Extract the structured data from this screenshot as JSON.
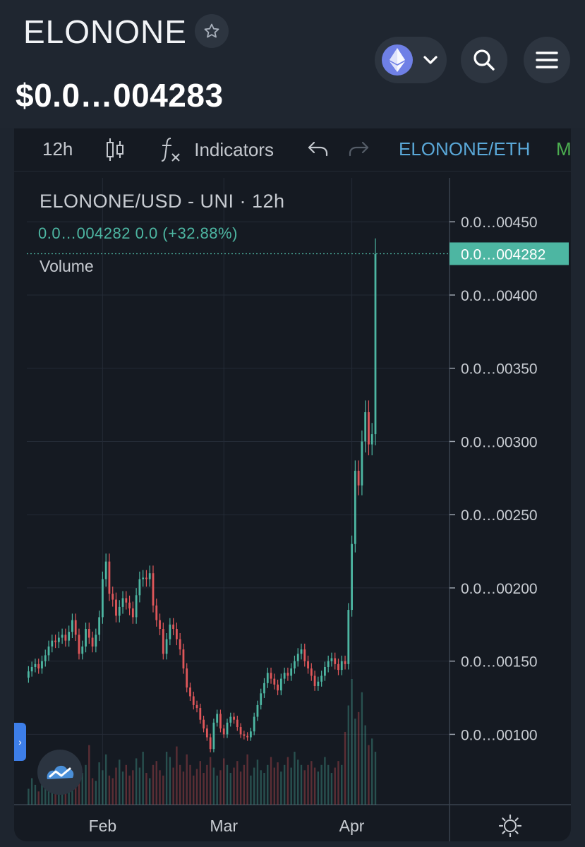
{
  "header": {
    "token_name": "ELONONE",
    "price": "$0.0…004283",
    "favorite_icon": "star-icon",
    "chain_icon": "ethereum-icon",
    "search_icon": "search-icon",
    "menu_icon": "menu-icon"
  },
  "toolbar": {
    "interval": "12h",
    "indicators_label": "Indicators",
    "pair_label": "ELONONE/ETH",
    "extra_label": "M",
    "chart_type_icon": "candlestick-icon",
    "fx_icon": "function-icon",
    "undo_icon": "undo-icon",
    "redo_icon": "redo-icon"
  },
  "legend": {
    "title": "ELONONE/USD - UNI · 12h",
    "value": "0.0…004282 0.0 (+32.88%)",
    "volume": "Volume"
  },
  "colors": {
    "up": "#4db6a2",
    "down": "#e0575a",
    "accent_blue": "#5aa8d8"
  },
  "chart_data": {
    "type": "candlestick",
    "title": "ELONONE/USD - UNI · 12h",
    "y_tick_labels": [
      "0.0…00450",
      "0.0…00400",
      "0.0…00350",
      "0.0…00300",
      "0.0…00250",
      "0.0…00200",
      "0.0…00150",
      "0.0…00100"
    ],
    "y_ticks": [
      0.0045,
      0.004,
      0.0035,
      0.003,
      0.0025,
      0.002,
      0.0015,
      0.001
    ],
    "ylim": [
      0.00052,
      0.0048
    ],
    "x_tick_labels": [
      "Feb",
      "Mar",
      "Apr"
    ],
    "x_ticks": [
      22,
      58,
      96
    ],
    "xlim": [
      -0.5,
      125
    ],
    "current_price_label": "0.0…004282",
    "current_price": 0.004282,
    "grid": true,
    "closes": [
      0.00143,
      0.00146,
      0.00148,
      0.00145,
      0.0015,
      0.00154,
      0.0016,
      0.00164,
      0.00163,
      0.00166,
      0.00168,
      0.00164,
      0.0017,
      0.00178,
      0.00168,
      0.00155,
      0.0016,
      0.00172,
      0.00166,
      0.0016,
      0.00168,
      0.0018,
      0.00206,
      0.00218,
      0.00196,
      0.00192,
      0.00181,
      0.00187,
      0.00193,
      0.0019,
      0.00186,
      0.0018,
      0.00195,
      0.00206,
      0.00207,
      0.00206,
      0.0021,
      0.00188,
      0.00178,
      0.00172,
      0.00155,
      0.00165,
      0.00175,
      0.00172,
      0.00165,
      0.00158,
      0.00145,
      0.00132,
      0.00126,
      0.0012,
      0.00118,
      0.0011,
      0.00104,
      0.00098,
      0.0009,
      0.00108,
      0.00114,
      0.00104,
      0.001,
      0.00108,
      0.00112,
      0.0011,
      0.00105,
      0.001,
      0.00099,
      0.00098,
      0.00102,
      0.00112,
      0.0012,
      0.00128,
      0.00135,
      0.00142,
      0.00138,
      0.00134,
      0.0013,
      0.00138,
      0.00142,
      0.0014,
      0.00145,
      0.0015,
      0.00155,
      0.00158,
      0.0015,
      0.00145,
      0.0014,
      0.00133,
      0.00136,
      0.0014,
      0.00146,
      0.0015,
      0.00152,
      0.00148,
      0.00144,
      0.0015,
      0.00148,
      0.00185,
      0.0023,
      0.0028,
      0.0027,
      0.003,
      0.0032,
      0.00298,
      0.00305,
      0.00428
    ],
    "volumes": [
      0.12,
      0.2,
      0.15,
      0.1,
      0.22,
      0.18,
      0.25,
      0.14,
      0.3,
      0.12,
      0.2,
      0.35,
      0.18,
      0.28,
      0.22,
      0.16,
      0.24,
      0.3,
      0.45,
      0.2,
      0.18,
      0.32,
      0.26,
      0.38,
      0.22,
      0.2,
      0.28,
      0.34,
      0.25,
      0.3,
      0.22,
      0.26,
      0.35,
      0.28,
      0.4,
      0.24,
      0.2,
      0.3,
      0.33,
      0.26,
      0.22,
      0.4,
      0.36,
      0.28,
      0.44,
      0.3,
      0.25,
      0.38,
      0.3,
      0.22,
      0.27,
      0.33,
      0.24,
      0.3,
      0.36,
      0.28,
      0.22,
      0.26,
      0.35,
      0.3,
      0.24,
      0.28,
      0.33,
      0.25,
      0.3,
      0.38,
      0.22,
      0.28,
      0.34,
      0.26,
      0.24,
      0.3,
      0.36,
      0.28,
      0.32,
      0.25,
      0.3,
      0.36,
      0.28,
      0.4,
      0.34,
      0.3,
      0.26,
      0.3,
      0.33,
      0.28,
      0.25,
      0.3,
      0.36,
      0.3,
      0.24,
      0.28,
      0.33,
      0.3,
      0.55,
      0.75,
      0.95,
      0.65,
      0.7,
      0.85,
      0.6,
      0.45,
      0.5,
      0.4
    ]
  },
  "footer": {
    "settings_icon": "settings-icon",
    "sidebar_toggle_icon": "chevron-right-icon",
    "logo_icon": "tradingview-logo-icon"
  }
}
